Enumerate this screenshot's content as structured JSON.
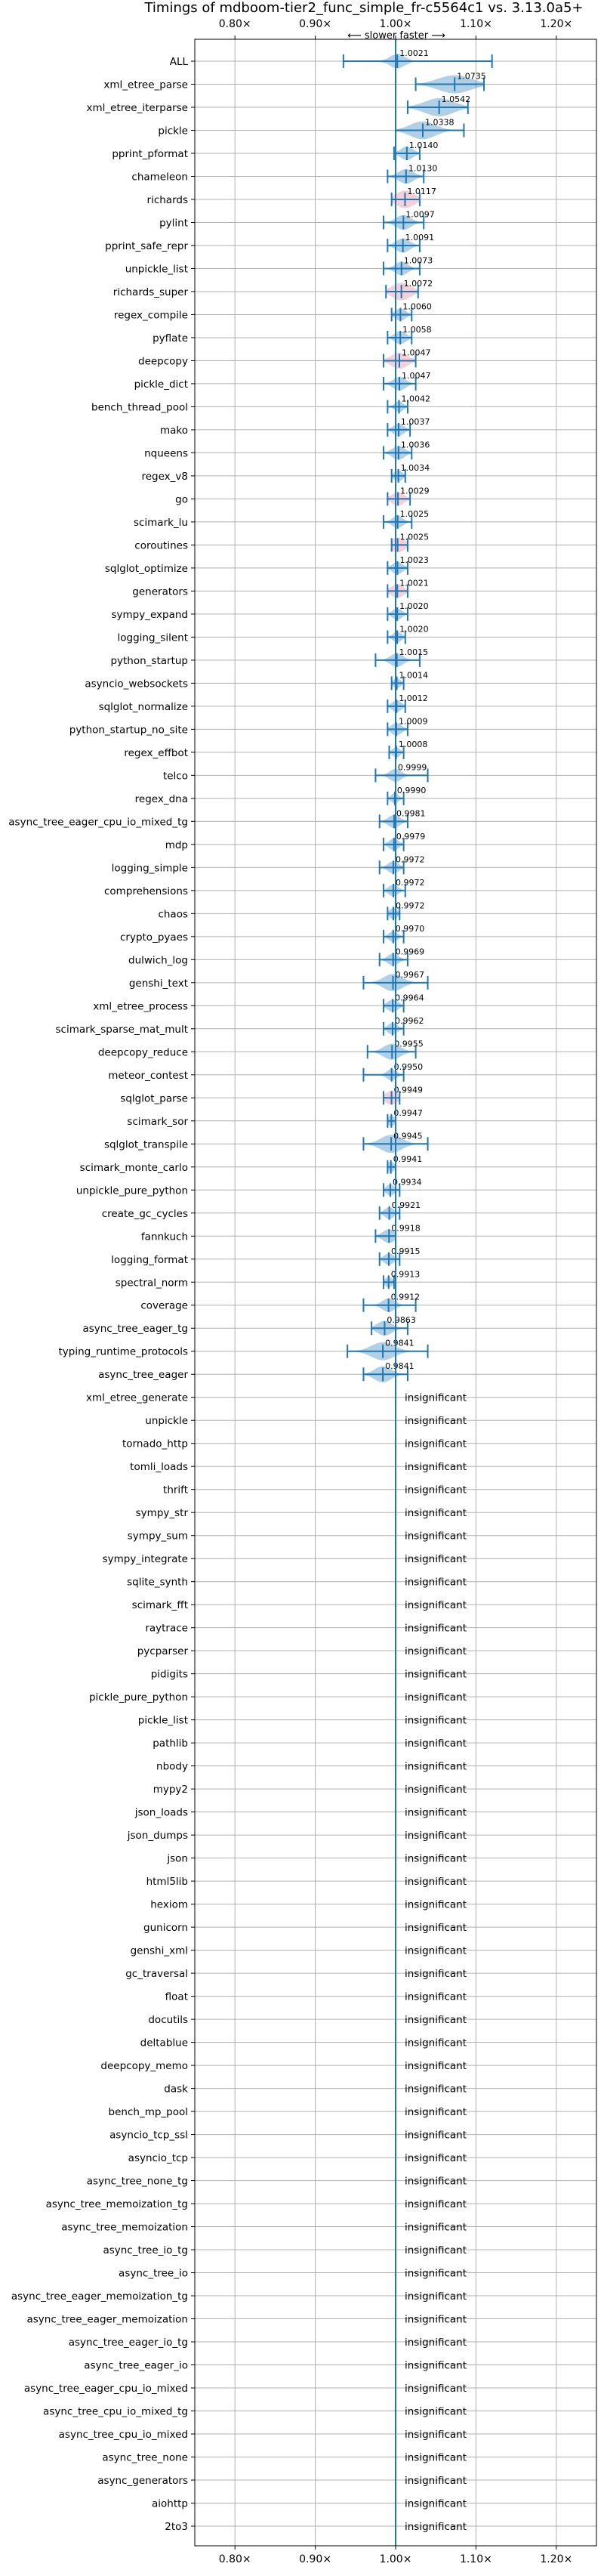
{
  "chart_data": {
    "type": "violin",
    "title": "Timings of mdboom-tier2_func_simple_fr-c5564c1 vs. 3.13.0a5+",
    "direction_label": "⟵ slower    faster ⟶",
    "xlim": [
      0.75,
      1.25
    ],
    "x_ticks": [
      0.8,
      0.9,
      1.0,
      1.1,
      1.2
    ],
    "x_tick_labels": [
      "0.80×",
      "0.90×",
      "1.00×",
      "1.10×",
      "1.20×"
    ],
    "insignificant_label": "insignificant",
    "colors": {
      "violin": "#1f77b4",
      "highlight": "#e8768c",
      "reference": "#1f77b4",
      "grid": "#b0b0b0"
    },
    "benchmarks": [
      {
        "name": "ALL",
        "value": 1.0021,
        "low": 0.935,
        "high": 1.12,
        "width": 0.014,
        "highlight": false
      },
      {
        "name": "xml_etree_parse",
        "value": 1.0735,
        "low": 1.025,
        "high": 1.11,
        "width": 0.032,
        "highlight": false
      },
      {
        "name": "xml_etree_iterparse",
        "value": 1.0542,
        "low": 1.015,
        "high": 1.09,
        "width": 0.028,
        "highlight": false
      },
      {
        "name": "pickle",
        "value": 1.0338,
        "low": 1.0,
        "high": 1.085,
        "width": 0.024,
        "highlight": false
      },
      {
        "name": "pprint_pformat",
        "value": 1.014,
        "low": 0.998,
        "high": 1.03,
        "width": 0.012,
        "highlight": false
      },
      {
        "name": "chameleon",
        "value": 1.013,
        "low": 0.99,
        "high": 1.035,
        "width": 0.014,
        "highlight": false
      },
      {
        "name": "richards",
        "value": 1.0117,
        "low": 0.995,
        "high": 1.03,
        "width": 0.018,
        "highlight": true
      },
      {
        "name": "pylint",
        "value": 1.0097,
        "low": 0.985,
        "high": 1.035,
        "width": 0.014,
        "highlight": false
      },
      {
        "name": "pprint_safe_repr",
        "value": 1.0091,
        "low": 0.99,
        "high": 1.03,
        "width": 0.013,
        "highlight": false
      },
      {
        "name": "unpickle_list",
        "value": 1.0073,
        "low": 0.985,
        "high": 1.03,
        "width": 0.012,
        "highlight": false
      },
      {
        "name": "richards_super",
        "value": 1.0072,
        "low": 0.988,
        "high": 1.028,
        "width": 0.018,
        "highlight": true
      },
      {
        "name": "regex_compile",
        "value": 1.006,
        "low": 0.995,
        "high": 1.02,
        "width": 0.01,
        "highlight": false
      },
      {
        "name": "pyflate",
        "value": 1.0058,
        "low": 0.99,
        "high": 1.02,
        "width": 0.011,
        "highlight": false
      },
      {
        "name": "deepcopy",
        "value": 1.0047,
        "low": 0.985,
        "high": 1.025,
        "width": 0.016,
        "highlight": true
      },
      {
        "name": "pickle_dict",
        "value": 1.0047,
        "low": 0.985,
        "high": 1.025,
        "width": 0.012,
        "highlight": false
      },
      {
        "name": "bench_thread_pool",
        "value": 1.0042,
        "low": 0.99,
        "high": 1.015,
        "width": 0.008,
        "highlight": false
      },
      {
        "name": "mako",
        "value": 1.0037,
        "low": 0.99,
        "high": 1.018,
        "width": 0.01,
        "highlight": false
      },
      {
        "name": "nqueens",
        "value": 1.0036,
        "low": 0.985,
        "high": 1.02,
        "width": 0.012,
        "highlight": false
      },
      {
        "name": "regex_v8",
        "value": 1.0034,
        "low": 0.995,
        "high": 1.012,
        "width": 0.008,
        "highlight": false
      },
      {
        "name": "go",
        "value": 1.0029,
        "low": 0.99,
        "high": 1.018,
        "width": 0.012,
        "highlight": true
      },
      {
        "name": "scimark_lu",
        "value": 1.0025,
        "low": 0.985,
        "high": 1.02,
        "width": 0.01,
        "highlight": false
      },
      {
        "name": "coroutines",
        "value": 1.0025,
        "low": 0.995,
        "high": 1.015,
        "width": 0.014,
        "highlight": true
      },
      {
        "name": "sqlglot_optimize",
        "value": 1.0023,
        "low": 0.99,
        "high": 1.015,
        "width": 0.01,
        "highlight": false
      },
      {
        "name": "generators",
        "value": 1.0021,
        "low": 0.99,
        "high": 1.015,
        "width": 0.012,
        "highlight": true
      },
      {
        "name": "sympy_expand",
        "value": 1.002,
        "low": 0.99,
        "high": 1.015,
        "width": 0.009,
        "highlight": false
      },
      {
        "name": "logging_silent",
        "value": 1.002,
        "low": 0.99,
        "high": 1.012,
        "width": 0.008,
        "highlight": false
      },
      {
        "name": "python_startup",
        "value": 1.0015,
        "low": 0.975,
        "high": 1.03,
        "width": 0.012,
        "highlight": false
      },
      {
        "name": "asyncio_websockets",
        "value": 1.0014,
        "low": 0.995,
        "high": 1.01,
        "width": 0.007,
        "highlight": false
      },
      {
        "name": "sqlglot_normalize",
        "value": 1.0012,
        "low": 0.99,
        "high": 1.012,
        "width": 0.009,
        "highlight": false
      },
      {
        "name": "python_startup_no_site",
        "value": 1.0009,
        "low": 0.99,
        "high": 1.015,
        "width": 0.01,
        "highlight": false
      },
      {
        "name": "regex_effbot",
        "value": 1.0008,
        "low": 0.992,
        "high": 1.01,
        "width": 0.007,
        "highlight": false
      },
      {
        "name": "telco",
        "value": 0.9999,
        "low": 0.975,
        "high": 1.04,
        "width": 0.011,
        "highlight": false
      },
      {
        "name": "regex_dna",
        "value": 0.999,
        "low": 0.99,
        "high": 1.01,
        "width": 0.007,
        "highlight": false
      },
      {
        "name": "async_tree_eager_cpu_io_mixed_tg",
        "value": 0.9981,
        "low": 0.98,
        "high": 1.015,
        "width": 0.011,
        "highlight": false
      },
      {
        "name": "mdp",
        "value": 0.9979,
        "low": 0.985,
        "high": 1.01,
        "width": 0.009,
        "highlight": false
      },
      {
        "name": "logging_simple",
        "value": 0.9972,
        "low": 0.98,
        "high": 1.01,
        "width": 0.01,
        "highlight": false
      },
      {
        "name": "comprehensions",
        "value": 0.9972,
        "low": 0.985,
        "high": 1.012,
        "width": 0.009,
        "highlight": false
      },
      {
        "name": "chaos",
        "value": 0.9972,
        "low": 0.99,
        "high": 1.005,
        "width": 0.008,
        "highlight": false
      },
      {
        "name": "crypto_pyaes",
        "value": 0.997,
        "low": 0.985,
        "high": 1.01,
        "width": 0.008,
        "highlight": false
      },
      {
        "name": "dulwich_log",
        "value": 0.9969,
        "low": 0.98,
        "high": 1.015,
        "width": 0.01,
        "highlight": false
      },
      {
        "name": "genshi_text",
        "value": 0.9967,
        "low": 0.96,
        "high": 1.04,
        "width": 0.018,
        "highlight": false
      },
      {
        "name": "xml_etree_process",
        "value": 0.9964,
        "low": 0.985,
        "high": 1.01,
        "width": 0.01,
        "highlight": false
      },
      {
        "name": "scimark_sparse_mat_mult",
        "value": 0.9962,
        "low": 0.985,
        "high": 1.01,
        "width": 0.009,
        "highlight": false
      },
      {
        "name": "deepcopy_reduce",
        "value": 0.9955,
        "low": 0.965,
        "high": 1.025,
        "width": 0.016,
        "highlight": false
      },
      {
        "name": "meteor_contest",
        "value": 0.995,
        "low": 0.96,
        "high": 1.01,
        "width": 0.009,
        "highlight": false
      },
      {
        "name": "sqlglot_parse",
        "value": 0.9949,
        "low": 0.985,
        "high": 1.005,
        "width": 0.012,
        "highlight": true
      },
      {
        "name": "scimark_sor",
        "value": 0.9947,
        "low": 0.99,
        "high": 1.0,
        "width": 0.007,
        "highlight": false
      },
      {
        "name": "sqlglot_transpile",
        "value": 0.9945,
        "low": 0.96,
        "high": 1.04,
        "width": 0.02,
        "highlight": false
      },
      {
        "name": "scimark_monte_carlo",
        "value": 0.9941,
        "low": 0.99,
        "high": 1.0,
        "width": 0.007,
        "highlight": false
      },
      {
        "name": "unpickle_pure_python",
        "value": 0.9934,
        "low": 0.985,
        "high": 1.005,
        "width": 0.008,
        "highlight": false
      },
      {
        "name": "create_gc_cycles",
        "value": 0.9921,
        "low": 0.98,
        "high": 1.005,
        "width": 0.009,
        "highlight": false
      },
      {
        "name": "fannkuch",
        "value": 0.9918,
        "low": 0.975,
        "high": 1.0,
        "width": 0.012,
        "highlight": false
      },
      {
        "name": "logging_format",
        "value": 0.9915,
        "low": 0.98,
        "high": 1.005,
        "width": 0.009,
        "highlight": false
      },
      {
        "name": "spectral_norm",
        "value": 0.9913,
        "low": 0.985,
        "high": 0.998,
        "width": 0.007,
        "highlight": false
      },
      {
        "name": "coverage",
        "value": 0.9912,
        "low": 0.96,
        "high": 1.025,
        "width": 0.012,
        "highlight": false
      },
      {
        "name": "async_tree_eager_tg",
        "value": 0.9863,
        "low": 0.97,
        "high": 1.015,
        "width": 0.014,
        "highlight": false
      },
      {
        "name": "typing_runtime_protocols",
        "value": 0.9841,
        "low": 0.94,
        "high": 1.04,
        "width": 0.022,
        "highlight": false
      },
      {
        "name": "async_tree_eager",
        "value": 0.9841,
        "low": 0.96,
        "high": 1.015,
        "width": 0.016,
        "highlight": false
      },
      {
        "name": "xml_etree_generate",
        "insignificant": true
      },
      {
        "name": "unpickle",
        "insignificant": true
      },
      {
        "name": "tornado_http",
        "insignificant": true
      },
      {
        "name": "tomli_loads",
        "insignificant": true
      },
      {
        "name": "thrift",
        "insignificant": true
      },
      {
        "name": "sympy_str",
        "insignificant": true
      },
      {
        "name": "sympy_sum",
        "insignificant": true
      },
      {
        "name": "sympy_integrate",
        "insignificant": true
      },
      {
        "name": "sqlite_synth",
        "insignificant": true
      },
      {
        "name": "scimark_fft",
        "insignificant": true
      },
      {
        "name": "raytrace",
        "insignificant": true
      },
      {
        "name": "pycparser",
        "insignificant": true
      },
      {
        "name": "pidigits",
        "insignificant": true
      },
      {
        "name": "pickle_pure_python",
        "insignificant": true
      },
      {
        "name": "pickle_list",
        "insignificant": true
      },
      {
        "name": "pathlib",
        "insignificant": true
      },
      {
        "name": "nbody",
        "insignificant": true
      },
      {
        "name": "mypy2",
        "insignificant": true
      },
      {
        "name": "json_loads",
        "insignificant": true
      },
      {
        "name": "json_dumps",
        "insignificant": true
      },
      {
        "name": "json",
        "insignificant": true
      },
      {
        "name": "html5lib",
        "insignificant": true
      },
      {
        "name": "hexiom",
        "insignificant": true
      },
      {
        "name": "gunicorn",
        "insignificant": true
      },
      {
        "name": "genshi_xml",
        "insignificant": true
      },
      {
        "name": "gc_traversal",
        "insignificant": true
      },
      {
        "name": "float",
        "insignificant": true
      },
      {
        "name": "docutils",
        "insignificant": true
      },
      {
        "name": "deltablue",
        "insignificant": true
      },
      {
        "name": "deepcopy_memo",
        "insignificant": true
      },
      {
        "name": "dask",
        "insignificant": true
      },
      {
        "name": "bench_mp_pool",
        "insignificant": true
      },
      {
        "name": "asyncio_tcp_ssl",
        "insignificant": true
      },
      {
        "name": "asyncio_tcp",
        "insignificant": true
      },
      {
        "name": "async_tree_none_tg",
        "insignificant": true
      },
      {
        "name": "async_tree_memoization_tg",
        "insignificant": true
      },
      {
        "name": "async_tree_memoization",
        "insignificant": true
      },
      {
        "name": "async_tree_io_tg",
        "insignificant": true
      },
      {
        "name": "async_tree_io",
        "insignificant": true
      },
      {
        "name": "async_tree_eager_memoization_tg",
        "insignificant": true
      },
      {
        "name": "async_tree_eager_memoization",
        "insignificant": true
      },
      {
        "name": "async_tree_eager_io_tg",
        "insignificant": true
      },
      {
        "name": "async_tree_eager_io",
        "insignificant": true
      },
      {
        "name": "async_tree_eager_cpu_io_mixed",
        "insignificant": true
      },
      {
        "name": "async_tree_cpu_io_mixed_tg",
        "insignificant": true
      },
      {
        "name": "async_tree_cpu_io_mixed",
        "insignificant": true
      },
      {
        "name": "async_tree_none",
        "insignificant": true
      },
      {
        "name": "async_generators",
        "insignificant": true
      },
      {
        "name": "aiohttp",
        "insignificant": true
      },
      {
        "name": "2to3",
        "insignificant": true
      }
    ]
  }
}
